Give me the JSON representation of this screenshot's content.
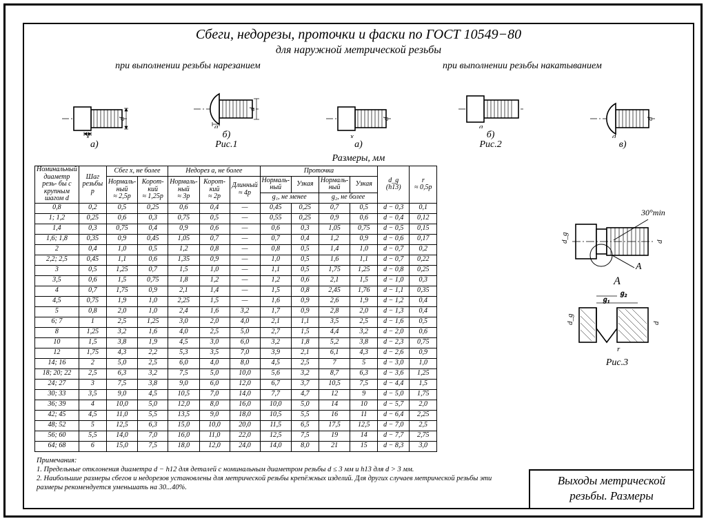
{
  "title1": "Сбеги, недорезы, проточки и фаски по ГОСТ 10549−80",
  "title2": "для наружной метрической резьбы",
  "cutting": "при выполнении резьбы нарезанием",
  "rolling": "при выполнении резьбы накатыванием",
  "fig1": "Рис.1",
  "fig2": "Рис.2",
  "fig3": "Рис.3",
  "a_lbl": "а)",
  "b_lbl": "б)",
  "v_lbl": "в)",
  "x_dim": "x",
  "a_dim": "а",
  "d_dim": "d",
  "table_title": "Размеры, мм",
  "header": {
    "col1": "Номинальный диаметр резь- бы с крупным шагом d",
    "col2": "Шаг резьбы p",
    "sbeg": "Сбег x, не более",
    "nedorez": "Недорез а, не более",
    "protochka": "Проточка",
    "norm": "Нормаль-\nный",
    "korot": "Корот-\nкий",
    "dlin": "Длинный",
    "sbeg_n": "≈ 2,5p",
    "sbeg_k": "≈ 1,25p",
    "ned_n": "≈ 3p",
    "ned_k": "≈ 2p",
    "ned_d": "≈ 4p",
    "uzk": "Узкая",
    "g1": "g₁, не менее",
    "g2": "g₂, не более",
    "dg": "d_g",
    "dg2": "(h13)",
    "r": "r",
    "r2": "≈ 0,5p"
  },
  "rows": [
    [
      "0,8",
      "0,2",
      "0,5",
      "0,25",
      "0,6",
      "0,4",
      "—",
      "0,45",
      "0,25",
      "0,7",
      "0,5",
      "d − 0,3",
      "0,1"
    ],
    [
      "1; 1,2",
      "0,25",
      "0,6",
      "0,3",
      "0,75",
      "0,5",
      "—",
      "0,55",
      "0,25",
      "0,9",
      "0,6",
      "d − 0,4",
      "0,12"
    ],
    [
      "1,4",
      "0,3",
      "0,75",
      "0,4",
      "0,9",
      "0,6",
      "—",
      "0,6",
      "0,3",
      "1,05",
      "0,75",
      "d − 0,5",
      "0,15"
    ],
    [
      "1,6; 1,8",
      "0,35",
      "0,9",
      "0,45",
      "1,05",
      "0,7",
      "—",
      "0,7",
      "0,4",
      "1,2",
      "0,9",
      "d − 0,6",
      "0,17"
    ],
    [
      "2",
      "0,4",
      "1,0",
      "0,5",
      "1,2",
      "0,8",
      "—",
      "0,8",
      "0,5",
      "1,4",
      "1,0",
      "d − 0,7",
      "0,2"
    ],
    [
      "2,2; 2,5",
      "0,45",
      "1,1",
      "0,6",
      "1,35",
      "0,9",
      "—",
      "1,0",
      "0,5",
      "1,6",
      "1,1",
      "d − 0,7",
      "0,22"
    ],
    [
      "3",
      "0,5",
      "1,25",
      "0,7",
      "1,5",
      "1,0",
      "—",
      "1,1",
      "0,5",
      "1,75",
      "1,25",
      "d − 0,8",
      "0,25"
    ],
    [
      "3,5",
      "0,6",
      "1,5",
      "0,75",
      "1,8",
      "1,2",
      "—",
      "1,2",
      "0,6",
      "2,1",
      "1,5",
      "d − 1,0",
      "0,3"
    ],
    [
      "4",
      "0,7",
      "1,75",
      "0,9",
      "2,1",
      "1,4",
      "—",
      "1,5",
      "0,8",
      "2,45",
      "1,76",
      "d − 1,1",
      "0,35"
    ],
    [
      "4,5",
      "0,75",
      "1,9",
      "1,0",
      "2,25",
      "1,5",
      "—",
      "1,6",
      "0,9",
      "2,6",
      "1,9",
      "d − 1,2",
      "0,4"
    ],
    [
      "5",
      "0,8",
      "2,0",
      "1,0",
      "2,4",
      "1,6",
      "3,2",
      "1,7",
      "0,9",
      "2,8",
      "2,0",
      "d − 1,3",
      "0,4"
    ],
    [
      "6; 7",
      "1",
      "2,5",
      "1,25",
      "3,0",
      "2,0",
      "4,0",
      "2,1",
      "1,1",
      "3,5",
      "2,5",
      "d − 1,6",
      "0,5"
    ],
    [
      "8",
      "1,25",
      "3,2",
      "1,6",
      "4,0",
      "2,5",
      "5,0",
      "2,7",
      "1,5",
      "4,4",
      "3,2",
      "d − 2,0",
      "0,6"
    ],
    [
      "10",
      "1,5",
      "3,8",
      "1,9",
      "4,5",
      "3,0",
      "6,0",
      "3,2",
      "1,8",
      "5,2",
      "3,8",
      "d − 2,3",
      "0,75"
    ],
    [
      "12",
      "1,75",
      "4,3",
      "2,2",
      "5,3",
      "3,5",
      "7,0",
      "3,9",
      "2,1",
      "6,1",
      "4,3",
      "d − 2,6",
      "0,9"
    ],
    [
      "14; 16",
      "2",
      "5,0",
      "2,5",
      "6,0",
      "4,0",
      "8,0",
      "4,5",
      "2,5",
      "7",
      "5",
      "d − 3,0",
      "1,0"
    ],
    [
      "18; 20; 22",
      "2,5",
      "6,3",
      "3,2",
      "7,5",
      "5,0",
      "10,0",
      "5,6",
      "3,2",
      "8,7",
      "6,3",
      "d − 3,6",
      "1,25"
    ],
    [
      "24; 27",
      "3",
      "7,5",
      "3,8",
      "9,0",
      "6,0",
      "12,0",
      "6,7",
      "3,7",
      "10,5",
      "7,5",
      "d − 4,4",
      "1,5"
    ],
    [
      "30; 33",
      "3,5",
      "9,0",
      "4,5",
      "10,5",
      "7,0",
      "14,0",
      "7,7",
      "4,7",
      "12",
      "9",
      "d − 5,0",
      "1,75"
    ],
    [
      "36; 39",
      "4",
      "10,0",
      "5,0",
      "12,0",
      "8,0",
      "16,0",
      "10,0",
      "5,0",
      "14",
      "10",
      "d − 5,7",
      "2,0"
    ],
    [
      "42; 45",
      "4,5",
      "11,0",
      "5,5",
      "13,5",
      "9,0",
      "18,0",
      "10,5",
      "5,5",
      "16",
      "11",
      "d − 6,4",
      "2,25"
    ],
    [
      "48; 52",
      "5",
      "12,5",
      "6,3",
      "15,0",
      "10,0",
      "20,0",
      "11,5",
      "6,5",
      "17,5",
      "12,5",
      "d − 7,0",
      "2,5"
    ],
    [
      "56; 60",
      "5,5",
      "14,0",
      "7,0",
      "16,0",
      "11,0",
      "22,0",
      "12,5",
      "7,5",
      "19",
      "14",
      "d − 7,7",
      "2,75"
    ],
    [
      "64; 68",
      "6",
      "15,0",
      "7,5",
      "18,0",
      "12,0",
      "24,0",
      "14,0",
      "8,0",
      "21",
      "15",
      "d − 8,3",
      "3,0"
    ]
  ],
  "notes_title": "Примечания:",
  "note1": "1. Предельные отклонения диаметра d − h12 для деталей с номинальным диаметром резьбы d ≤ 3 мм и h13 для d > 3 мм.",
  "note2": "2. Наибольшие размеры сбегов и недорезов установлены для метрической резьбы крепёжных изделий. Для других случаев метрической резьбы эти размеры рекомендуется уменьшать на 30...40%.",
  "bottom1": "Выходы метрической",
  "bottom2": "резьбы. Размеры",
  "angle": "30°min",
  "A": "A",
  "g1s": "g₁",
  "g2s": "g₂",
  "dgx": "d_g"
}
